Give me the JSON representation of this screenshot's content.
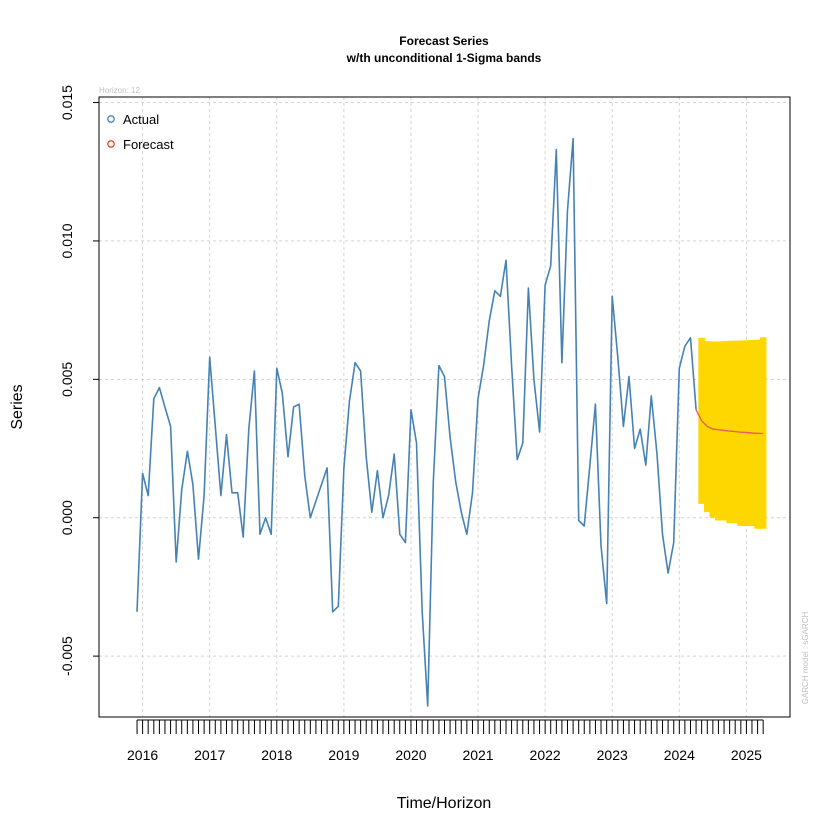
{
  "chart_data": {
    "type": "line",
    "title": "Forecast Series",
    "subtitle": "w/th unconditional 1-Sigma bands",
    "xlabel": "Time/Horizon",
    "ylabel": "Series",
    "horizon_label": "Horizon: 12",
    "side_note": "GARCH model :  sGARCH",
    "ylim": [
      -0.0072,
      0.0152
    ],
    "xlim": [
      2015.35,
      2025.65
    ],
    "y_ticks": [
      -0.005,
      0.0,
      0.005,
      0.01,
      0.015
    ],
    "y_tick_labels": [
      "-0.005",
      "0.000",
      "0.005",
      "0.010",
      "0.015"
    ],
    "x_ticks": [
      2016,
      2017,
      2018,
      2019,
      2020,
      2021,
      2022,
      2023,
      2024,
      2025
    ],
    "x_tick_labels": [
      "2016",
      "2017",
      "2018",
      "2019",
      "2020",
      "2021",
      "2022",
      "2023",
      "2024",
      "2025"
    ],
    "grid": true,
    "legend_position": "top-left",
    "legend": [
      {
        "label": "Actual",
        "color": "#4682b4"
      },
      {
        "label": "Forecast",
        "color": "#e04a2f"
      }
    ],
    "colors": {
      "actual": "#4682b4",
      "forecast": "#e8605a",
      "band": "#ffd700",
      "grid": "#d3d3d3"
    },
    "series": [
      {
        "name": "Actual",
        "x": [
          2015.917,
          2016.0,
          2016.083,
          2016.167,
          2016.25,
          2016.333,
          2016.417,
          2016.5,
          2016.583,
          2016.667,
          2016.75,
          2016.833,
          2016.917,
          2017.0,
          2017.083,
          2017.167,
          2017.25,
          2017.333,
          2017.417,
          2017.5,
          2017.583,
          2017.667,
          2017.75,
          2017.833,
          2017.917,
          2018.0,
          2018.083,
          2018.167,
          2018.25,
          2018.333,
          2018.417,
          2018.5,
          2018.583,
          2018.667,
          2018.75,
          2018.833,
          2018.917,
          2019.0,
          2019.083,
          2019.167,
          2019.25,
          2019.333,
          2019.417,
          2019.5,
          2019.583,
          2019.667,
          2019.75,
          2019.833,
          2019.917,
          2020.0,
          2020.083,
          2020.167,
          2020.25,
          2020.333,
          2020.417,
          2020.5,
          2020.583,
          2020.667,
          2020.75,
          2020.833,
          2020.917,
          2021.0,
          2021.083,
          2021.167,
          2021.25,
          2021.333,
          2021.417,
          2021.5,
          2021.583,
          2021.667,
          2021.75,
          2021.833,
          2021.917,
          2022.0,
          2022.083,
          2022.167,
          2022.25,
          2022.333,
          2022.417,
          2022.5,
          2022.583,
          2022.667,
          2022.75,
          2022.833,
          2022.917,
          2023.0,
          2023.083,
          2023.167,
          2023.25,
          2023.333,
          2023.417,
          2023.5,
          2023.583,
          2023.667,
          2023.75,
          2023.833,
          2023.917,
          2024.0,
          2024.083,
          2024.167,
          2024.25
        ],
        "y": [
          -0.0034,
          0.0016,
          0.0008,
          0.0043,
          0.0047,
          0.004,
          0.0033,
          -0.0016,
          0.001,
          0.0024,
          0.0012,
          -0.0015,
          0.0008,
          0.0058,
          0.0033,
          0.0008,
          0.003,
          0.0009,
          0.0009,
          -0.0007,
          0.0032,
          0.0053,
          -0.0006,
          0.0,
          -0.0006,
          0.0054,
          0.0045,
          0.0022,
          0.004,
          0.0041,
          0.0015,
          0.0,
          0.0006,
          0.0012,
          0.0018,
          -0.0034,
          -0.0032,
          0.0018,
          0.0042,
          0.0056,
          0.0053,
          0.0022,
          0.0002,
          0.0017,
          0.0,
          0.0008,
          0.0023,
          -0.0006,
          -0.0009,
          0.0039,
          0.0027,
          -0.0034,
          -0.0068,
          0.0013,
          0.0055,
          0.0051,
          0.0029,
          0.0013,
          0.0002,
          -0.0006,
          0.0009,
          0.0043,
          0.0055,
          0.0071,
          0.0082,
          0.008,
          0.0093,
          0.0055,
          0.0021,
          0.0027,
          0.0083,
          0.005,
          0.0031,
          0.0084,
          0.0091,
          0.0133,
          0.0056,
          0.0111,
          0.0137,
          -0.0001,
          -0.0003,
          0.0019,
          0.0041,
          -0.001,
          -0.0031,
          0.008,
          0.0058,
          0.0033,
          0.0051,
          0.0025,
          0.0032,
          0.0019,
          0.0044,
          0.0023,
          -0.0006,
          -0.002,
          -0.0009,
          0.0054,
          0.0062,
          0.0065,
          0.0039
        ]
      },
      {
        "name": "Forecast",
        "x": [
          2024.333,
          2024.417,
          2024.5,
          2024.583,
          2024.667,
          2024.75,
          2024.833,
          2024.917,
          2025.0,
          2025.083,
          2025.167,
          2025.25
        ],
        "y": [
          0.0035,
          0.0033,
          0.0032,
          0.00318,
          0.00315,
          0.00313,
          0.00311,
          0.00309,
          0.00308,
          0.00306,
          0.00305,
          0.00304
        ],
        "upper": [
          0.0065,
          0.00638,
          0.00637,
          0.00637,
          0.00638,
          0.00639,
          0.0064,
          0.0064,
          0.00641,
          0.00642,
          0.00643,
          0.00652
        ],
        "lower": [
          0.0005,
          0.0002,
          0.0,
          -0.0001,
          -0.0001,
          -0.0002,
          -0.0002,
          -0.0003,
          -0.0003,
          -0.0003,
          -0.0004,
          -0.0004
        ]
      }
    ]
  }
}
